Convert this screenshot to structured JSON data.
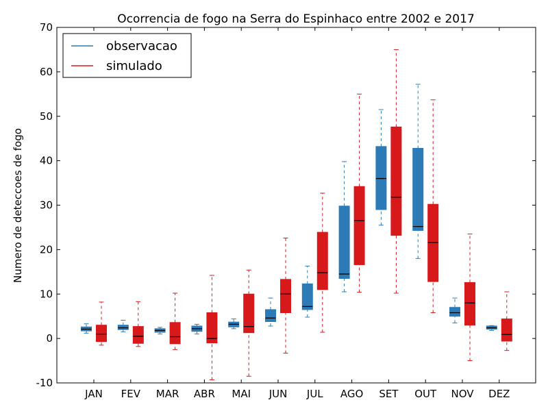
{
  "chart_data": {
    "type": "box",
    "title": "Ocorrencia de fogo na Serra do Espinhaco entre 2002 e 2017",
    "xlabel": "",
    "ylabel": "Numero de deteccoes de fogo",
    "ylim": [
      -10,
      70
    ],
    "yticks": [
      -10,
      0,
      10,
      20,
      30,
      40,
      50,
      60,
      70
    ],
    "categories": [
      "JAN",
      "FEV",
      "MAR",
      "ABR",
      "MAI",
      "JUN",
      "JUL",
      "AGO",
      "SET",
      "OUT",
      "NOV",
      "DEZ"
    ],
    "legend_position": "top-left",
    "grid": false,
    "series": [
      {
        "name": "observacao",
        "color": "#2c7bb6",
        "boxes": [
          {
            "whislo": 1.2,
            "q1": 1.7,
            "med": 2.1,
            "q3": 2.6,
            "whishi": 3.3
          },
          {
            "whislo": 1.5,
            "q1": 2.0,
            "med": 2.4,
            "q3": 3.0,
            "whishi": 4.1
          },
          {
            "whislo": 1.0,
            "q1": 1.4,
            "med": 1.8,
            "q3": 2.2,
            "whishi": 2.5
          },
          {
            "whislo": 1.0,
            "q1": 1.6,
            "med": 2.2,
            "q3": 2.8,
            "whishi": 3.2
          },
          {
            "whislo": 2.2,
            "q1": 2.6,
            "med": 3.2,
            "q3": 3.7,
            "whishi": 4.4
          },
          {
            "whislo": 2.8,
            "q1": 3.8,
            "med": 4.6,
            "q3": 6.5,
            "whishi": 9.1
          },
          {
            "whislo": 4.8,
            "q1": 6.5,
            "med": 7.2,
            "q3": 12.3,
            "whishi": 16.3
          },
          {
            "whislo": 10.5,
            "q1": 13.5,
            "med": 14.5,
            "q3": 29.8,
            "whishi": 39.8
          },
          {
            "whislo": 25.5,
            "q1": 29.0,
            "med": 36.0,
            "q3": 43.2,
            "whishi": 51.5
          },
          {
            "whislo": 18.0,
            "q1": 24.3,
            "med": 25.2,
            "q3": 42.8,
            "whishi": 57.2
          },
          {
            "whislo": 3.5,
            "q1": 5.0,
            "med": 5.8,
            "q3": 7.0,
            "whishi": 9.1
          },
          {
            "whislo": 1.8,
            "q1": 2.1,
            "med": 2.4,
            "q3": 2.8,
            "whishi": 2.9
          }
        ]
      },
      {
        "name": "simulado",
        "color": "#d7191c",
        "boxes": [
          {
            "whislo": -1.5,
            "q1": -0.7,
            "med": 1.0,
            "q3": 3.0,
            "whishi": 8.2
          },
          {
            "whislo": -1.8,
            "q1": -1.1,
            "med": 0.5,
            "q3": 2.7,
            "whishi": 8.3
          },
          {
            "whislo": -2.5,
            "q1": -1.2,
            "med": 0.4,
            "q3": 3.6,
            "whishi": 10.2
          },
          {
            "whislo": -9.3,
            "q1": -1.0,
            "med": 0.0,
            "q3": 5.8,
            "whishi": 14.2
          },
          {
            "whislo": -8.5,
            "q1": 1.3,
            "med": 2.7,
            "q3": 10.0,
            "whishi": 15.4
          },
          {
            "whislo": -3.3,
            "q1": 5.8,
            "med": 10.0,
            "q3": 13.3,
            "whishi": 22.6
          },
          {
            "whislo": 1.4,
            "q1": 11.0,
            "med": 14.8,
            "q3": 23.9,
            "whishi": 32.7
          },
          {
            "whislo": 10.4,
            "q1": 16.6,
            "med": 26.5,
            "q3": 34.2,
            "whishi": 55.0
          },
          {
            "whislo": 10.2,
            "q1": 23.2,
            "med": 31.8,
            "q3": 47.6,
            "whishi": 65.0
          },
          {
            "whislo": 5.8,
            "q1": 12.8,
            "med": 21.6,
            "q3": 30.2,
            "whishi": 53.7
          },
          {
            "whislo": -5.0,
            "q1": 3.0,
            "med": 8.0,
            "q3": 12.6,
            "whishi": 23.5
          },
          {
            "whislo": -2.7,
            "q1": -0.6,
            "med": 0.9,
            "q3": 4.4,
            "whishi": 10.5
          }
        ]
      }
    ]
  }
}
